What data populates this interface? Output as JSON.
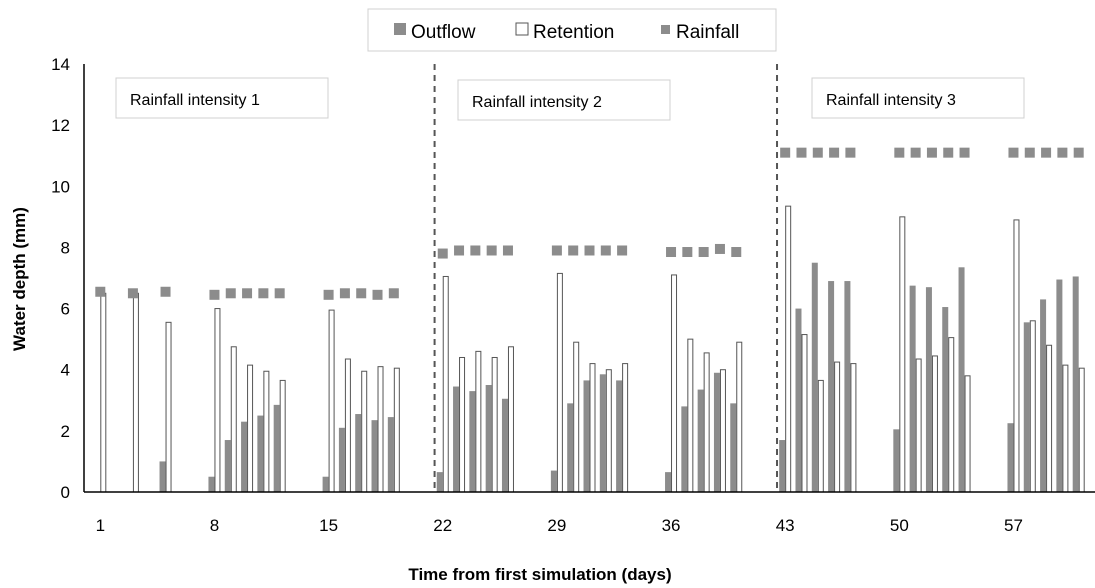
{
  "chart_data": {
    "type": "bar",
    "xlabel": "Time from first simulation (days)",
    "ylabel": "Water depth (mm)",
    "ylim": [
      0,
      14
    ],
    "xlim": [
      0,
      62
    ],
    "y_ticks": [
      0,
      2,
      4,
      6,
      8,
      10,
      12,
      14
    ],
    "x_ticks": [
      1,
      8,
      15,
      22,
      29,
      36,
      43,
      50,
      57
    ],
    "grid": false,
    "legend_position": "top",
    "legend": [
      "Outflow",
      "Retention",
      "Rainfall"
    ],
    "colors": {
      "outflow": "#8c8c8c",
      "retention": "#ffffff",
      "retention_edge": "#555555",
      "rainfall": "#8c8c8c",
      "axis": "#000000",
      "divider": "#555555"
    },
    "dividers": [
      21.5,
      42.5
    ],
    "region_labels": [
      "Rainfall intensity 1",
      "Rainfall intensity  2",
      "Rainfall intensity  3"
    ],
    "series": [
      {
        "name": "Outflow",
        "values": [
          [
            5,
            1.0
          ],
          [
            8,
            0.5
          ],
          [
            9,
            1.7
          ],
          [
            10,
            2.3
          ],
          [
            11,
            2.5
          ],
          [
            12,
            2.85
          ],
          [
            15,
            0.5
          ],
          [
            16,
            2.1
          ],
          [
            17,
            2.55
          ],
          [
            18,
            2.35
          ],
          [
            19,
            2.45
          ],
          [
            22,
            0.65
          ],
          [
            23,
            3.45
          ],
          [
            24,
            3.3
          ],
          [
            25,
            3.5
          ],
          [
            26,
            3.05
          ],
          [
            29,
            0.7
          ],
          [
            30,
            2.9
          ],
          [
            31,
            3.65
          ],
          [
            32,
            3.85
          ],
          [
            33,
            3.65
          ],
          [
            36,
            0.65
          ],
          [
            37,
            2.8
          ],
          [
            38,
            3.35
          ],
          [
            39,
            3.9
          ],
          [
            40,
            2.9
          ],
          [
            43,
            1.7
          ],
          [
            44,
            6.0
          ],
          [
            45,
            7.5
          ],
          [
            46,
            6.9
          ],
          [
            47,
            6.9
          ],
          [
            50,
            2.05
          ],
          [
            51,
            6.75
          ],
          [
            52,
            6.7
          ],
          [
            53,
            6.05
          ],
          [
            54,
            7.35
          ],
          [
            57,
            2.25
          ],
          [
            58,
            5.55
          ],
          [
            59,
            6.3
          ],
          [
            60,
            6.95
          ],
          [
            61,
            7.05
          ]
        ]
      },
      {
        "name": "Retention",
        "values": [
          [
            1,
            6.5
          ],
          [
            3,
            6.5
          ],
          [
            5,
            5.55
          ],
          [
            8,
            6.0
          ],
          [
            9,
            4.75
          ],
          [
            10,
            4.15
          ],
          [
            11,
            3.95
          ],
          [
            12,
            3.65
          ],
          [
            15,
            5.95
          ],
          [
            16,
            4.35
          ],
          [
            17,
            3.95
          ],
          [
            18,
            4.1
          ],
          [
            19,
            4.05
          ],
          [
            22,
            7.05
          ],
          [
            23,
            4.4
          ],
          [
            24,
            4.6
          ],
          [
            25,
            4.4
          ],
          [
            26,
            4.75
          ],
          [
            29,
            7.15
          ],
          [
            30,
            4.9
          ],
          [
            31,
            4.2
          ],
          [
            32,
            4.0
          ],
          [
            33,
            4.2
          ],
          [
            36,
            7.1
          ],
          [
            37,
            5.0
          ],
          [
            38,
            4.55
          ],
          [
            39,
            4.0
          ],
          [
            40,
            4.9
          ],
          [
            43,
            9.35
          ],
          [
            44,
            5.15
          ],
          [
            45,
            3.65
          ],
          [
            46,
            4.25
          ],
          [
            47,
            4.2
          ],
          [
            50,
            9.0
          ],
          [
            51,
            4.35
          ],
          [
            52,
            4.45
          ],
          [
            53,
            5.05
          ],
          [
            54,
            3.8
          ],
          [
            57,
            8.9
          ],
          [
            58,
            5.6
          ],
          [
            59,
            4.8
          ],
          [
            60,
            4.15
          ],
          [
            61,
            4.05
          ]
        ]
      },
      {
        "name": "Rainfall",
        "values": [
          [
            1,
            6.55
          ],
          [
            3,
            6.5
          ],
          [
            5,
            6.55
          ],
          [
            8,
            6.45
          ],
          [
            9,
            6.5
          ],
          [
            10,
            6.5
          ],
          [
            11,
            6.5
          ],
          [
            12,
            6.5
          ],
          [
            15,
            6.45
          ],
          [
            16,
            6.5
          ],
          [
            17,
            6.5
          ],
          [
            18,
            6.45
          ],
          [
            19,
            6.5
          ],
          [
            22,
            7.8
          ],
          [
            23,
            7.9
          ],
          [
            24,
            7.9
          ],
          [
            25,
            7.9
          ],
          [
            26,
            7.9
          ],
          [
            29,
            7.9
          ],
          [
            30,
            7.9
          ],
          [
            31,
            7.9
          ],
          [
            32,
            7.9
          ],
          [
            33,
            7.9
          ],
          [
            36,
            7.85
          ],
          [
            37,
            7.85
          ],
          [
            38,
            7.85
          ],
          [
            39,
            7.95
          ],
          [
            40,
            7.85
          ],
          [
            43,
            11.1
          ],
          [
            44,
            11.1
          ],
          [
            45,
            11.1
          ],
          [
            46,
            11.1
          ],
          [
            47,
            11.1
          ],
          [
            50,
            11.1
          ],
          [
            51,
            11.1
          ],
          [
            52,
            11.1
          ],
          [
            53,
            11.1
          ],
          [
            54,
            11.1
          ],
          [
            57,
            11.1
          ],
          [
            58,
            11.1
          ],
          [
            59,
            11.1
          ],
          [
            60,
            11.1
          ],
          [
            61,
            11.1
          ]
        ]
      }
    ]
  }
}
